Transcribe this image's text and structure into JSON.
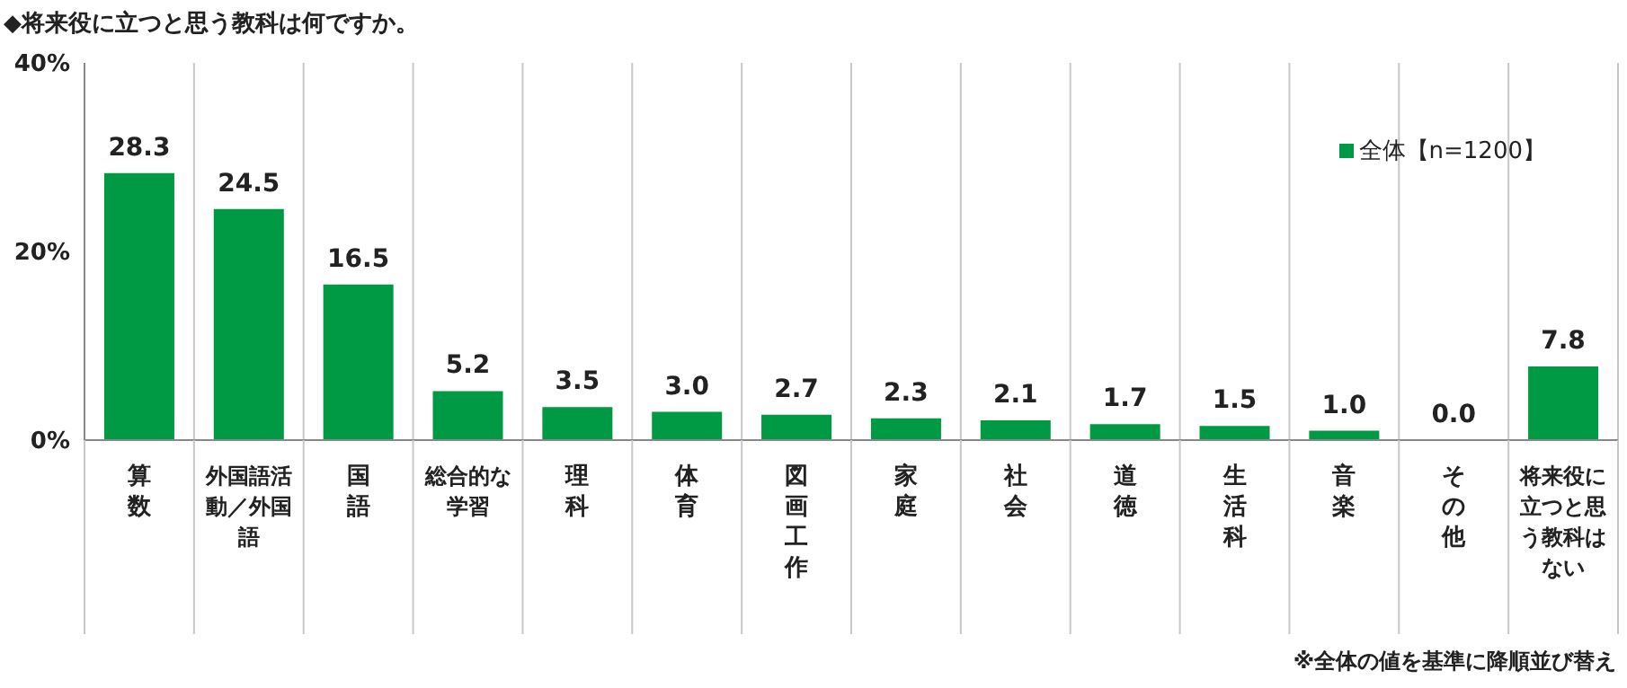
{
  "chart_data": {
    "type": "bar",
    "title": "◆将来役に立つと思う教科は何ですか。",
    "categories": [
      "算数",
      "外国語活動／外国語",
      "国語",
      "総合的な学習",
      "理科",
      "体育",
      "図画工作",
      "家庭",
      "社会",
      "道徳",
      "生活科",
      "音楽",
      "その他",
      "将来役に立つと思う教科はない"
    ],
    "series": [
      {
        "name": "全体【n=1200】",
        "color": "#009944",
        "values": [
          28.3,
          24.5,
          16.5,
          5.2,
          3.5,
          3.0,
          2.7,
          2.3,
          2.1,
          1.7,
          1.5,
          1.0,
          0.0,
          7.8
        ],
        "value_labels": [
          "28.3",
          "24.5",
          "16.5",
          "5.2",
          "3.5",
          "3.0",
          "2.7",
          "2.3",
          "2.1",
          "1.7",
          "1.5",
          "1.0",
          "0.0",
          "7.8"
        ]
      }
    ],
    "ylim": [
      0,
      40
    ],
    "yticks": [
      {
        "value": 0,
        "label": "0%"
      },
      {
        "value": 20,
        "label": "20%"
      },
      {
        "value": 40,
        "label": "40%"
      }
    ],
    "grid": "x",
    "legend": "top right",
    "annotations": [
      "※全体の値を基準に降順並び替え"
    ]
  }
}
